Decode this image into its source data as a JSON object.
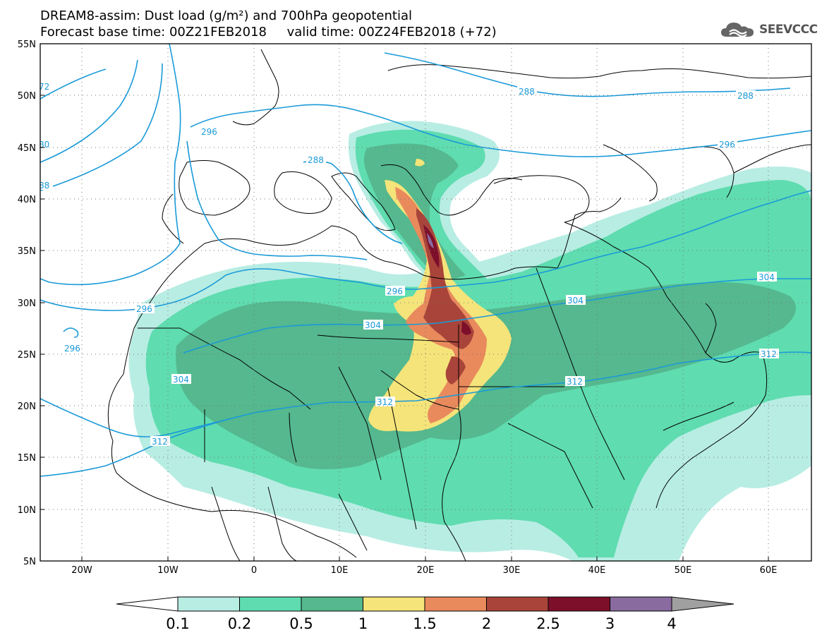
{
  "title": {
    "line1": "DREAM8-assim: Dust load (g/m²) and 700hPa geopotential",
    "line2": "Forecast base time: 00Z21FEB2018     valid time: 00Z24FEB2018 (+72)"
  },
  "logo": {
    "text": "SEEVCCC",
    "icon": "cloud-icon"
  },
  "map": {
    "lon_labels": [
      "20W",
      "10W",
      "0",
      "10E",
      "20E",
      "30E",
      "40E",
      "50E",
      "60E"
    ],
    "lat_labels": [
      "55N",
      "50N",
      "45N",
      "40N",
      "35N",
      "30N",
      "25N",
      "20N",
      "15N",
      "10N",
      "5N"
    ],
    "contour_labels": [
      "72",
      "80",
      "88",
      "296",
      "288",
      "288",
      "288",
      "296",
      "296",
      "296",
      "304",
      "304",
      "304",
      "304",
      "312",
      "312",
      "312",
      "312",
      "296"
    ]
  },
  "colorbar": {
    "ticks": [
      "0.1",
      "0.2",
      "0.5",
      "1",
      "1.5",
      "2",
      "2.5",
      "3",
      "4"
    ],
    "colors": [
      "#ffffff",
      "#b8ede3",
      "#5fdcb0",
      "#55b88e",
      "#f5e47a",
      "#e98a5d",
      "#a9443a",
      "#7d0f2b",
      "#8a6b9f",
      "#a0a0a0"
    ]
  }
}
